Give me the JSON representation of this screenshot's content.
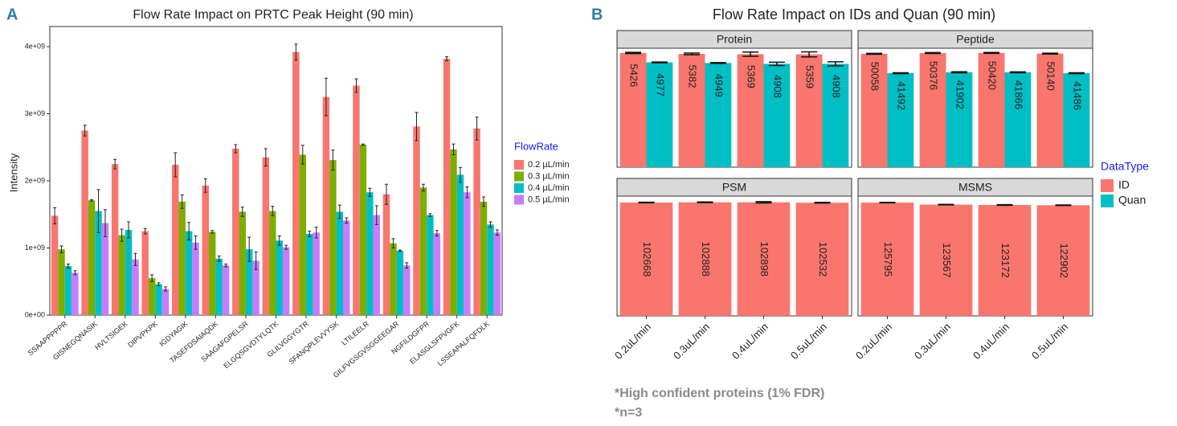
{
  "panel_labels": [
    "A",
    "B"
  ],
  "chart_data": [
    {
      "type": "bar",
      "title": "Flow Rate Impact on PRTC Peak Height (90 min)",
      "y_label": "Intensity",
      "legend_title": "FlowRate",
      "categories": [
        "SSAAPPPPPR",
        "GISNEGQNASIK",
        "HVLTSIGEK",
        "DIPVPKPK",
        "IGDYAGIK",
        "TASEFDSAIAQDK",
        "SAAGAFGPELSR",
        "ELGQSGVDTYLQTK",
        "GLILVGGYGTR",
        "SFANQPLEVVYSK",
        "LTILEELR",
        "GILFVGSGVSGGEEGAR",
        "NGFILDGFPR",
        "ELASGLSFPVGFK",
        "LSSEAPALFQFDLK"
      ],
      "ylim": [
        0,
        4300000000
      ],
      "yticks": [
        {
          "value": 0,
          "label": "0e+00"
        },
        {
          "value": 1000000000,
          "label": "1e+09"
        },
        {
          "value": 2000000000,
          "label": "2e+09"
        },
        {
          "value": 3000000000,
          "label": "3e+09"
        },
        {
          "value": 4000000000,
          "label": "4e+09"
        }
      ],
      "series": [
        {
          "name": "0.2 µL/min",
          "color": "#F8766D",
          "values": [
            1480000000,
            2750000000,
            2250000000,
            1250000000,
            2240000000,
            1930000000,
            2480000000,
            2350000000,
            3920000000,
            3250000000,
            3420000000,
            1800000000,
            2810000000,
            3820000000,
            2780000000
          ],
          "errors": [
            120000000,
            80000000,
            70000000,
            40000000,
            180000000,
            100000000,
            60000000,
            130000000,
            120000000,
            280000000,
            100000000,
            150000000,
            210000000,
            30000000,
            170000000
          ]
        },
        {
          "name": "0.3 µL/min",
          "color": "#7CAE00",
          "values": [
            980000000,
            1710000000,
            1190000000,
            550000000,
            1690000000,
            1240000000,
            1540000000,
            1550000000,
            2390000000,
            2310000000,
            2540000000,
            1070000000,
            1900000000,
            2470000000,
            1690000000
          ],
          "errors": [
            50000000,
            10000000,
            90000000,
            50000000,
            100000000,
            20000000,
            70000000,
            70000000,
            140000000,
            150000000,
            10000000,
            70000000,
            50000000,
            80000000,
            70000000
          ]
        },
        {
          "name": "0.4 µL/min",
          "color": "#00BFC4",
          "values": [
            730000000,
            1550000000,
            1270000000,
            460000000,
            1250000000,
            840000000,
            980000000,
            1110000000,
            1210000000,
            1540000000,
            1830000000,
            960000000,
            1490000000,
            2090000000,
            1350000000
          ],
          "errors": [
            30000000,
            320000000,
            120000000,
            20000000,
            130000000,
            40000000,
            180000000,
            70000000,
            40000000,
            100000000,
            60000000,
            10000000,
            20000000,
            110000000,
            40000000
          ]
        },
        {
          "name": "0.5 µL/min",
          "color": "#C77CFF",
          "values": [
            630000000,
            1370000000,
            830000000,
            390000000,
            1080000000,
            740000000,
            810000000,
            1010000000,
            1230000000,
            1410000000,
            1490000000,
            740000000,
            1220000000,
            1830000000,
            1230000000
          ],
          "errors": [
            30000000,
            200000000,
            90000000,
            30000000,
            100000000,
            20000000,
            130000000,
            30000000,
            80000000,
            40000000,
            140000000,
            40000000,
            40000000,
            80000000,
            40000000
          ]
        }
      ]
    },
    {
      "type": "facet",
      "title": "Flow Rate Impact on IDs and Quan (90 min)",
      "legend_title": "DataType",
      "categories": [
        "0.2uL/min",
        "0.3uL/min",
        "0.4uL/min",
        "0.5uL/min"
      ],
      "legend": [
        {
          "name": "ID",
          "color": "#F8766D"
        },
        {
          "name": "Quan",
          "color": "#00BFC4"
        }
      ],
      "facets": [
        {
          "title": "Protein",
          "ylim": [
            0,
            5650
          ],
          "series": [
            {
              "values": [
                5426,
                5382,
                5369,
                5359
              ],
              "errors": [
                30,
                40,
                100,
                120
              ]
            },
            {
              "values": [
                4977,
                4949,
                4908,
                4908
              ],
              "errors": [
                20,
                20,
                80,
                100
              ]
            }
          ]
        },
        {
          "title": "Peptide",
          "ylim": [
            0,
            52500
          ],
          "series": [
            {
              "values": [
                50058,
                50376,
                50420,
                50140
              ],
              "errors": [
                200,
                200,
                200,
                200
              ]
            },
            {
              "values": [
                41492,
                41902,
                41866,
                41486
              ],
              "errors": [
                200,
                200,
                200,
                200
              ]
            }
          ]
        },
        {
          "title": "PSM",
          "ylim": [
            0,
            108500
          ],
          "series": [
            {
              "values": [
                102668,
                102888,
                102898,
                102532
              ],
              "errors": [
                300,
                300,
                600,
                300
              ]
            }
          ]
        },
        {
          "title": "MSMS",
          "ylim": [
            0,
            133000
          ],
          "series": [
            {
              "values": [
                125795,
                123567,
                123172,
                122902
              ],
              "errors": [
                300,
                300,
                300,
                300
              ]
            }
          ]
        }
      ]
    }
  ],
  "footnotes": [
    "*High confident proteins (1% FDR)",
    "*n=3"
  ]
}
